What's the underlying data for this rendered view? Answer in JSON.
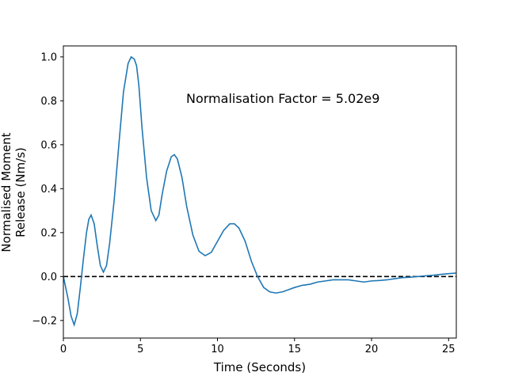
{
  "chart_data": {
    "type": "line",
    "title": "",
    "xlabel": "Time (Seconds)",
    "ylabel_lines": [
      "Normalised Moment",
      "Release (Nm/s)"
    ],
    "xlim": [
      0,
      25.5
    ],
    "ylim": [
      -0.28,
      1.05
    ],
    "xticks": [
      0,
      5,
      10,
      15,
      20,
      25
    ],
    "yticks": [
      -0.2,
      0.0,
      0.2,
      0.4,
      0.6,
      0.8,
      1.0
    ],
    "ytick_labels": [
      "−0.2",
      "0.0",
      "0.2",
      "0.4",
      "0.6",
      "0.8",
      "1.0"
    ],
    "annotation": "Normalisation Factor = 5.02e9",
    "reference_line": {
      "y": 0,
      "style": "dashed",
      "color": "#000000"
    },
    "grid": false,
    "series": [
      {
        "color": "#1f77b4",
        "x": [
          0,
          0.3,
          0.5,
          0.7,
          0.9,
          1.1,
          1.3,
          1.5,
          1.65,
          1.8,
          2.0,
          2.2,
          2.4,
          2.6,
          2.8,
          3.0,
          3.3,
          3.6,
          3.9,
          4.2,
          4.4,
          4.6,
          4.75,
          4.9,
          5.1,
          5.4,
          5.7,
          6.0,
          6.2,
          6.4,
          6.7,
          7.0,
          7.2,
          7.4,
          7.7,
          8.0,
          8.4,
          8.8,
          9.2,
          9.6,
          10.0,
          10.4,
          10.8,
          11.1,
          11.4,
          11.8,
          12.2,
          12.6,
          13.0,
          13.4,
          13.8,
          14.2,
          14.6,
          15.0,
          15.5,
          16.0,
          16.5,
          17.0,
          17.5,
          18.0,
          18.5,
          19.0,
          19.5,
          20.0,
          20.5,
          21.0,
          21.5,
          22.0,
          22.5,
          23.0,
          23.5,
          24.0,
          24.5,
          25.0,
          25.5
        ],
        "y": [
          0.0,
          -0.1,
          -0.18,
          -0.22,
          -0.17,
          -0.05,
          0.08,
          0.2,
          0.26,
          0.28,
          0.24,
          0.14,
          0.05,
          0.02,
          0.05,
          0.15,
          0.35,
          0.6,
          0.84,
          0.97,
          1.0,
          0.99,
          0.96,
          0.87,
          0.68,
          0.45,
          0.3,
          0.255,
          0.28,
          0.37,
          0.48,
          0.545,
          0.555,
          0.535,
          0.45,
          0.32,
          0.19,
          0.115,
          0.095,
          0.11,
          0.16,
          0.21,
          0.24,
          0.24,
          0.22,
          0.16,
          0.07,
          0.0,
          -0.05,
          -0.07,
          -0.075,
          -0.07,
          -0.06,
          -0.05,
          -0.04,
          -0.035,
          -0.025,
          -0.02,
          -0.015,
          -0.015,
          -0.015,
          -0.02,
          -0.025,
          -0.02,
          -0.018,
          -0.015,
          -0.01,
          -0.005,
          -0.003,
          0.0,
          0.003,
          0.006,
          0.01,
          0.013,
          0.016
        ]
      }
    ]
  }
}
